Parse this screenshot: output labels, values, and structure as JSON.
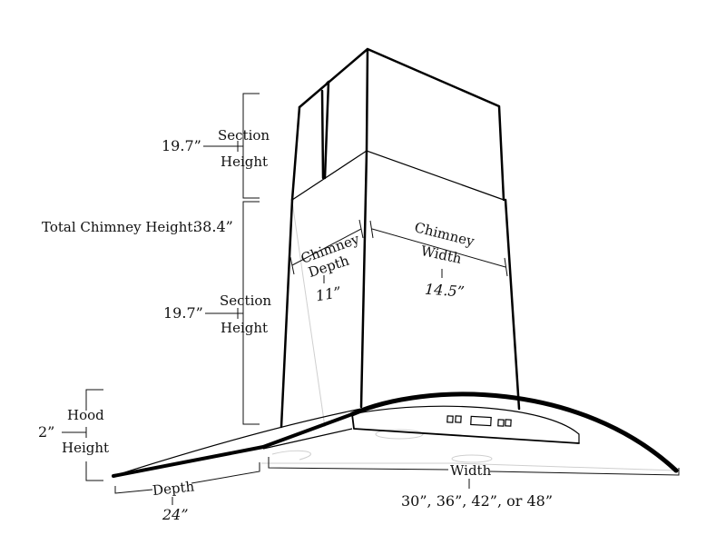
{
  "chimney_section_upper": {
    "value": "19.7”",
    "label_line1": "Section",
    "label_line2": "Height"
  },
  "total_chimney": {
    "label": "Total Chimney Height:",
    "value": "38.4”"
  },
  "chimney_section_lower": {
    "value": "19.7”",
    "label_line1": "Section",
    "label_line2": "Height"
  },
  "chimney_depth": {
    "label_line1": "Chimney",
    "label_line2": "Depth",
    "value": "11”"
  },
  "chimney_width": {
    "label_line1": "Chimney",
    "label_line2": "Width",
    "value": "14.5”"
  },
  "hood_height": {
    "label_line1": "Hood",
    "value": "2”",
    "label_line2": "Height"
  },
  "hood_depth": {
    "label": "Depth",
    "value": "24”"
  },
  "hood_width": {
    "label": "Width",
    "value": "30”, 36”, 42”, or 48”"
  },
  "colors": {
    "line": "#000000",
    "faint_line": "#cfcfcf",
    "background": "#ffffff"
  }
}
